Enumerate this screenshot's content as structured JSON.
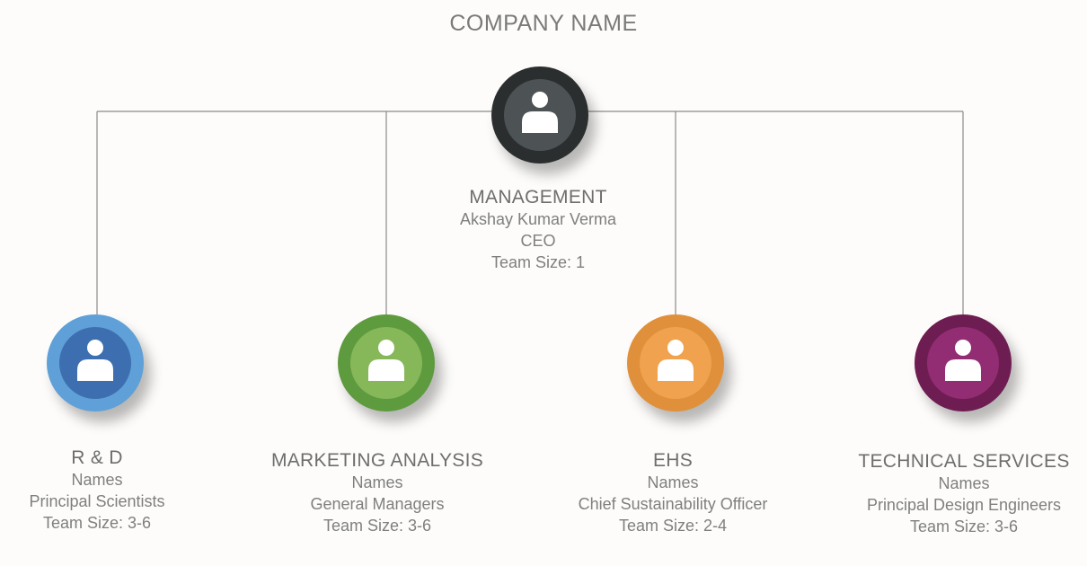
{
  "company_name": "COMPANY NAME",
  "management": {
    "department": "MANAGEMENT",
    "name": "Akshay Kumar Verma",
    "role": "CEO",
    "team": "Team Size: 1",
    "ring_color": "#2b2e2f",
    "inner_color": "#4d5254",
    "icon": "person-icon"
  },
  "departments": [
    {
      "department": "R & D",
      "name": "Names",
      "role": "Principal Scientists",
      "team": "Team Size: 3-6",
      "ring_color": "#5fa0d8",
      "inner_color": "#3d6fb0",
      "icon": "person-icon"
    },
    {
      "department": "MARKETING ANALYSIS",
      "name": "Names",
      "role": "General Managers",
      "team": "Team Size: 3-6",
      "ring_color": "#5e9a3e",
      "inner_color": "#86b85a",
      "icon": "person-icon"
    },
    {
      "department": "EHS",
      "name": "Names",
      "role": "Chief Sustainability Officer",
      "team": "Team Size: 2-4",
      "ring_color": "#e0903a",
      "inner_color": "#f0a24e",
      "icon": "person-icon"
    },
    {
      "department": "TECHNICAL SERVICES",
      "name": "Names",
      "role": "Principal Design Engineers",
      "team": "Team Size: 3-6",
      "ring_color": "#6e1d52",
      "inner_color": "#932d73",
      "icon": "person-icon"
    }
  ],
  "connector_color": "#8a8a8a"
}
